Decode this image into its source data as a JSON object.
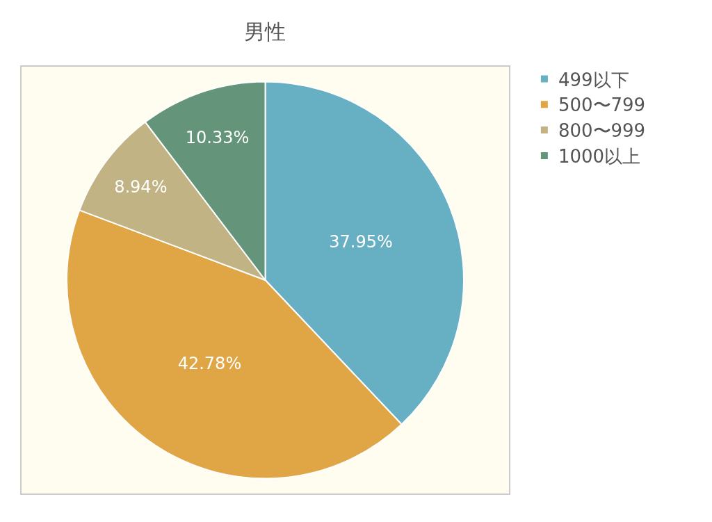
{
  "chart_data": {
    "type": "pie",
    "title": "男性",
    "categories": [
      "499以下",
      "500〜799",
      "800〜999",
      "1000以上"
    ],
    "values": [
      37.95,
      42.78,
      8.94,
      10.33
    ],
    "value_labels": [
      "37.95%",
      "42.78%",
      "8.94%",
      "10.33%"
    ],
    "colors": [
      "#67afc2",
      "#e0a544",
      "#c2b384",
      "#64957a"
    ],
    "legend": "top right"
  }
}
